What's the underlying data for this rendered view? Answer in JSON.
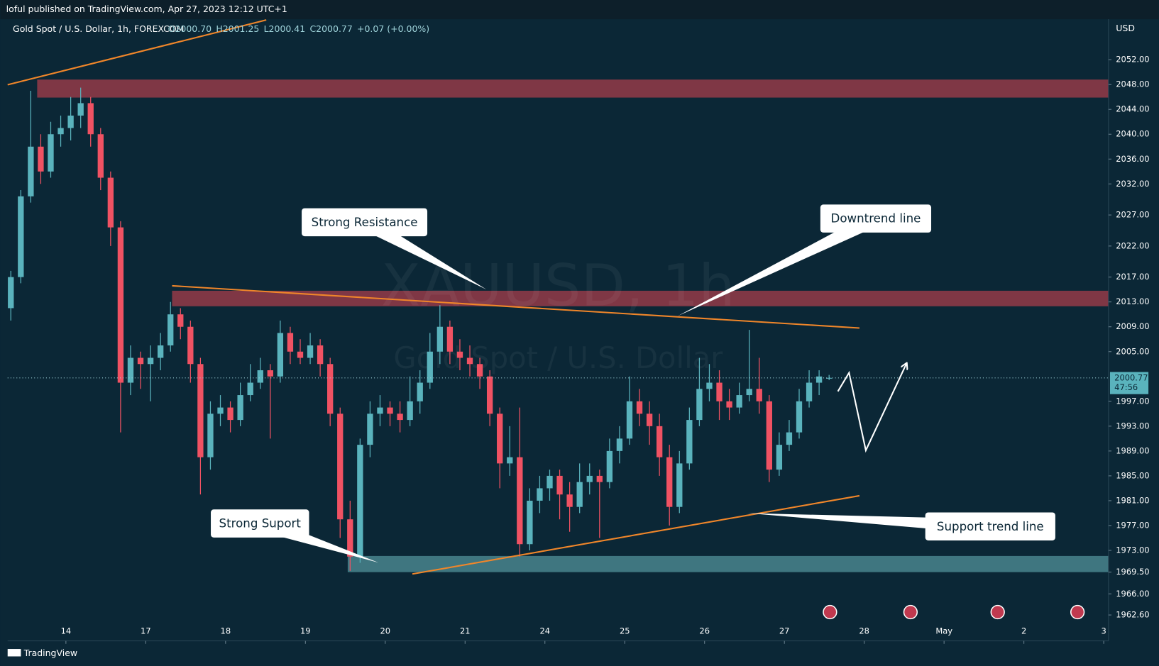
{
  "header": {
    "published": "loful published on TradingView.com, Apr 27, 2023 12:12 UTC+1",
    "brand": "TradingView"
  },
  "chart_data": {
    "type": "candlestick",
    "title": "Gold Spot / U.S. Dollar, 1h, FOREXCOM",
    "legend": [
      "O2000.70",
      "H2001.25",
      "L2000.41",
      "C2000.77",
      "+0.07 (+0.00%)"
    ],
    "currency": "USD",
    "watermark": [
      "XAUUSD, 1h",
      "Gold Spot / U.S. Dollar"
    ],
    "up_color": "#5ab3bd",
    "down_color": "#f05263",
    "xlim": [
      -0.73,
      13.06
    ],
    "ylim": [
      1961.4,
      2058.4
    ],
    "xticks": [
      {
        "value": 0,
        "label": "14"
      },
      {
        "value": 1,
        "label": "17"
      },
      {
        "value": 2,
        "label": "18"
      },
      {
        "value": 3,
        "label": "19"
      },
      {
        "value": 4,
        "label": "20"
      },
      {
        "value": 5,
        "label": "21"
      },
      {
        "value": 6,
        "label": "24"
      },
      {
        "value": 7,
        "label": "25"
      },
      {
        "value": 8,
        "label": "26"
      },
      {
        "value": 9,
        "label": "27"
      },
      {
        "value": 10,
        "label": "28"
      },
      {
        "value": 11,
        "label": "May"
      },
      {
        "value": 12,
        "label": "2"
      },
      {
        "value": 13,
        "label": "3"
      }
    ],
    "yticks": [
      {
        "value": 2052,
        "label": "2052.00"
      },
      {
        "value": 2048,
        "label": "2048.00"
      },
      {
        "value": 2044,
        "label": "2044.00"
      },
      {
        "value": 2040,
        "label": "2040.00"
      },
      {
        "value": 2036,
        "label": "2036.00"
      },
      {
        "value": 2032,
        "label": "2032.00"
      },
      {
        "value": 2027,
        "label": "2027.00"
      },
      {
        "value": 2022,
        "label": "2022.00"
      },
      {
        "value": 2017,
        "label": "2017.00"
      },
      {
        "value": 2013,
        "label": "2013.00"
      },
      {
        "value": 2009,
        "label": "2009.00"
      },
      {
        "value": 2005,
        "label": "2005.00"
      },
      {
        "value": 1997,
        "label": "1997.00"
      },
      {
        "value": 1993,
        "label": "1993.00"
      },
      {
        "value": 1989,
        "label": "1989.00"
      },
      {
        "value": 1985,
        "label": "1985.00"
      },
      {
        "value": 1981,
        "label": "1981.00"
      },
      {
        "value": 1977,
        "label": "1977.00"
      },
      {
        "value": 1973,
        "label": "1973.00"
      },
      {
        "value": 1969.5,
        "label": "1969.50"
      },
      {
        "value": 1966,
        "label": "1966.00"
      },
      {
        "value": 1962.6,
        "label": "1962.60"
      }
    ],
    "last_price": 2000.77,
    "countdown": "47:56",
    "x": [
      -0.69,
      -0.565,
      -0.44,
      -0.315,
      -0.19,
      -0.065,
      0.06,
      0.185,
      0.31,
      0.435,
      0.56,
      0.685,
      0.81,
      0.935,
      1.06,
      1.185,
      1.31,
      1.435,
      1.56,
      1.685,
      1.81,
      1.935,
      2.06,
      2.185,
      2.31,
      2.435,
      2.56,
      2.685,
      2.81,
      2.935,
      3.06,
      3.185,
      3.31,
      3.435,
      3.56,
      3.685,
      3.81,
      3.935,
      4.06,
      4.185,
      4.31,
      4.435,
      4.56,
      4.685,
      4.81,
      4.935,
      5.06,
      5.185,
      5.31,
      5.435,
      5.56,
      5.685,
      5.81,
      5.935,
      6.06,
      6.185,
      6.31,
      6.435,
      6.56,
      6.685,
      6.81,
      6.935,
      7.06,
      7.185,
      7.31,
      7.435,
      7.56,
      7.685,
      7.81,
      7.935,
      8.06,
      8.185,
      8.31,
      8.435,
      8.56,
      8.685,
      8.81,
      8.935,
      9.06,
      9.185,
      9.31,
      9.435,
      9.56
    ],
    "open": [
      2012,
      2017,
      2030,
      2038,
      2034,
      2040,
      2041,
      2043,
      2045,
      2040,
      2033,
      2025,
      2000,
      2004,
      2003,
      2004,
      2006,
      2011,
      2009,
      2003,
      1988,
      1995,
      1996,
      1994,
      1998,
      2000,
      2002,
      2001,
      2008,
      2005,
      2004,
      2006,
      2003,
      1995,
      1978,
      1972,
      1990,
      1995,
      1996,
      1995,
      1994,
      1997,
      2000,
      2005,
      2009,
      2005,
      2004,
      2003,
      2001,
      1995,
      1987,
      1988,
      1974,
      1981,
      1983,
      1985,
      1982,
      1980,
      1984,
      1985,
      1984,
      1989,
      1991,
      1997,
      1995,
      1993,
      1988,
      1980,
      1987,
      1994,
      1999,
      2000,
      1997,
      1996,
      1998,
      1999,
      1997,
      1986,
      1990,
      1992,
      1997,
      2000,
      2000.7
    ],
    "high": [
      2018,
      2031,
      2047,
      2040,
      2042,
      2043,
      2046,
      2047.5,
      2046,
      2041,
      2034,
      2026,
      2006,
      2005,
      2006,
      2008,
      2013,
      2012,
      2010,
      2004,
      1997,
      1998,
      1997,
      2000,
      2003,
      2004,
      2003,
      2010,
      2009,
      2007,
      2008,
      2007,
      2004,
      1996,
      1981,
      1991,
      1997,
      1998,
      1997,
      1997,
      2001,
      2002,
      2008,
      2012.5,
      2010,
      2007,
      2006,
      2004,
      2002,
      1996,
      1993,
      1996,
      1983,
      1985,
      1986,
      1986,
      1984,
      1987,
      1987,
      1986,
      1991,
      1993,
      2001,
      1999,
      1997,
      1995,
      1990,
      1989,
      1996,
      2004,
      2003,
      2002,
      1999,
      2000,
      2008.5,
      2004,
      1998,
      1992,
      1994,
      1999,
      2002,
      2002,
      2001.25
    ],
    "low": [
      2010,
      2016,
      2029,
      2032,
      2033,
      2038,
      2039,
      2041,
      2038,
      2031,
      2022,
      1992,
      1998,
      1999,
      1997,
      2002,
      2005,
      2007,
      2000,
      1982,
      1986,
      1993,
      1992,
      1993,
      1997,
      1999,
      1991,
      2000,
      2003,
      2003,
      2003,
      2001,
      1993,
      1975,
      1969.7,
      1971,
      1988,
      1993,
      1993,
      1992,
      1993,
      1995,
      1999,
      2003,
      2003,
      2002,
      2001,
      1999,
      1993,
      1983,
      1985,
      1972,
      1973,
      1979,
      1981,
      1978,
      1976,
      1979,
      1982,
      1975,
      1983,
      1987,
      1990,
      1993,
      1990,
      1985,
      1977,
      1979,
      1986,
      1993,
      1997,
      1994,
      1994,
      1995,
      1997,
      1995,
      1984,
      1985,
      1989,
      1991,
      1996,
      1998,
      2000.41
    ],
    "close": [
      2017,
      2030,
      2038,
      2034,
      2040,
      2041,
      2043,
      2045,
      2040,
      2033,
      2025,
      2000,
      2004,
      2003,
      2004,
      2006,
      2011,
      2009,
      2003,
      1988,
      1995,
      1996,
      1994,
      1998,
      2000,
      2002,
      2001,
      2008,
      2005,
      2004,
      2006,
      2003,
      1995,
      1978,
      1972,
      1990,
      1995,
      1996,
      1995,
      1994,
      1997,
      2000,
      2005,
      2009,
      2005,
      2004,
      2003,
      2001,
      1995,
      1987,
      1988,
      1974,
      1981,
      1983,
      1985,
      1982,
      1980,
      1984,
      1985,
      1984,
      1989,
      1991,
      1997,
      1995,
      1993,
      1988,
      1980,
      1987,
      1994,
      1999,
      2000,
      1997,
      1996,
      1998,
      1999,
      1997,
      1986,
      1990,
      1992,
      1997,
      2000,
      2001,
      2000.77
    ],
    "zones": [
      {
        "x0": -0.36,
        "top": 2048.8,
        "bottom": 2045.9,
        "color": "#7f3745"
      },
      {
        "x0": 1.33,
        "top": 2014.8,
        "bottom": 2012.3,
        "color": "#7f3745"
      },
      {
        "x0": 3.53,
        "top": 1972.1,
        "bottom": 1969.5,
        "color": "#3f7680"
      }
    ],
    "trendlines": [
      {
        "x": [
          -0.73,
          2.51
        ],
        "y": [
          2047.96,
          2058.4
        ],
        "color": "#f0862a"
      },
      {
        "x": [
          1.33,
          9.94
        ],
        "y": [
          2015.6,
          2008.8
        ],
        "color": "#f0862a"
      },
      {
        "x": [
          4.34,
          9.94
        ],
        "y": [
          1969.2,
          1981.8
        ],
        "color": "#f0862a"
      }
    ],
    "projection": {
      "x": [
        9.67,
        9.81,
        10.02,
        10.53
      ],
      "y": [
        1998.6,
        2001.6,
        1989.1,
        2003.1
      ],
      "color": "#ffffff"
    },
    "annotations": [
      "Strong Resistance",
      "Downtrend line",
      "Strong Suport",
      "Support trend line"
    ]
  }
}
